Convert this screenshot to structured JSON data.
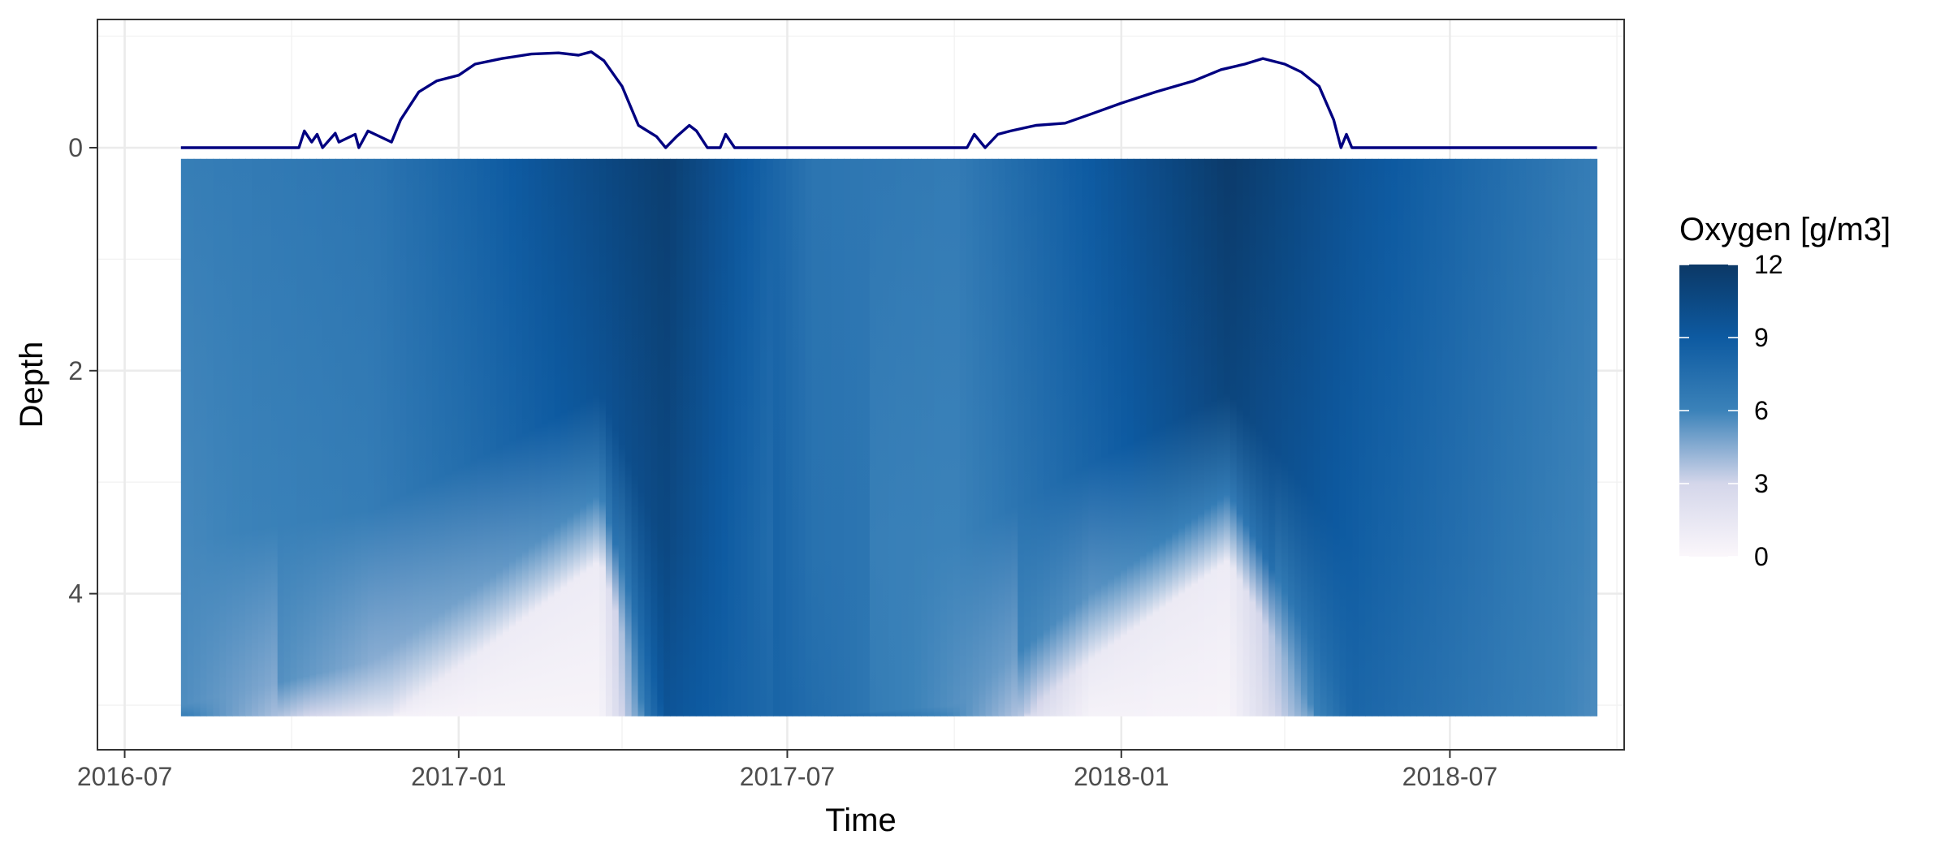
{
  "chart_data": {
    "type": "heatmap",
    "title": "",
    "xlabel": "Time",
    "ylabel": "Depth",
    "x_ticks": [
      "2016-07",
      "2017-01",
      "2017-07",
      "2018-01",
      "2018-07"
    ],
    "y_ticks": [
      "0",
      "2",
      "4"
    ],
    "xlim": [
      "2016-06-16",
      "2018-10-05"
    ],
    "ylim": [
      -1.15,
      5.4
    ],
    "y_reversed": true,
    "grid": true,
    "legend_position": "right",
    "legend": {
      "title": "Oxygen [g/m3]",
      "ticks": [
        "0",
        "3",
        "6",
        "9",
        "12"
      ],
      "range": [
        0,
        12
      ],
      "colors": [
        "#fbf7fb",
        "#d4d6ea",
        "#3b82b9",
        "#0d5aa1",
        "#0c3866"
      ]
    },
    "heatmap": {
      "time_range": [
        "2016-08-01",
        "2018-09-20"
      ],
      "depth_range": [
        0.1,
        5.1
      ],
      "description_profiles": [
        {
          "date": "2016-08-01",
          "surface": 6.3,
          "bottom": 5.5,
          "hypolimnion_top": 5.0
        },
        {
          "date": "2016-11-15",
          "surface": 7.0,
          "bottom": 0.5,
          "hypolimnion_top": 4.6
        },
        {
          "date": "2017-01-15",
          "surface": 8.5,
          "bottom": 0.3,
          "hypolimnion_top": 3.9
        },
        {
          "date": "2017-03-20",
          "surface": 10.5,
          "bottom": 0.3,
          "hypolimnion_top": 3.1
        },
        {
          "date": "2017-04-25",
          "surface": 11.5,
          "bottom": 8.5,
          "hypolimnion_top": 5.1
        },
        {
          "date": "2017-07-15",
          "surface": 7.0,
          "bottom": 8.0,
          "hypolimnion_top": 5.1
        },
        {
          "date": "2017-10-01",
          "surface": 6.5,
          "bottom": 5.0,
          "hypolimnion_top": 5.0
        },
        {
          "date": "2017-12-15",
          "surface": 9.0,
          "bottom": 0.5,
          "hypolimnion_top": 4.0
        },
        {
          "date": "2018-03-01",
          "surface": 11.8,
          "bottom": 0.3,
          "hypolimnion_top": 3.1
        },
        {
          "date": "2018-05-10",
          "surface": 9.5,
          "bottom": 7.5,
          "hypolimnion_top": 5.1
        },
        {
          "date": "2018-09-20",
          "surface": 6.3,
          "bottom": 5.5,
          "hypolimnion_top": 5.1
        }
      ]
    },
    "series": [
      {
        "type": "line",
        "color": "#000080",
        "x": [
          "2016-08-01",
          "2016-10-05",
          "2016-10-08",
          "2016-10-12",
          "2016-10-15",
          "2016-10-18",
          "2016-10-25",
          "2016-10-27",
          "2016-11-05",
          "2016-11-07",
          "2016-11-12",
          "2016-11-25",
          "2016-11-30",
          "2016-12-10",
          "2016-12-20",
          "2017-01-01",
          "2017-01-10",
          "2017-01-25",
          "2017-02-10",
          "2017-02-25",
          "2017-03-08",
          "2017-03-15",
          "2017-03-22",
          "2017-04-01",
          "2017-04-10",
          "2017-04-20",
          "2017-04-25",
          "2017-05-01",
          "2017-05-08",
          "2017-05-12",
          "2017-05-18",
          "2017-05-25",
          "2017-05-28",
          "2017-06-02",
          "2018-07-31",
          "2017-10-08",
          "2017-10-12",
          "2017-10-18",
          "2017-10-25",
          "2017-11-01",
          "2017-11-15",
          "2017-12-01",
          "2017-12-15",
          "2018-01-01",
          "2018-01-20",
          "2018-02-10",
          "2018-02-25",
          "2018-03-10",
          "2018-03-20",
          "2018-04-01",
          "2018-04-10",
          "2018-04-20",
          "2018-04-28",
          "2018-05-02",
          "2018-05-05",
          "2018-05-08",
          "2018-09-20"
        ],
        "y": [
          0,
          0,
          -0.15,
          -0.05,
          -0.12,
          0,
          -0.13,
          -0.05,
          -0.12,
          0,
          -0.15,
          -0.05,
          -0.25,
          -0.5,
          -0.6,
          -0.65,
          -0.75,
          -0.8,
          -0.84,
          -0.85,
          -0.83,
          -0.86,
          -0.78,
          -0.55,
          -0.2,
          -0.1,
          0,
          -0.1,
          -0.2,
          -0.15,
          0,
          0,
          -0.12,
          0,
          0,
          0,
          -0.12,
          0,
          -0.12,
          -0.15,
          -0.2,
          -0.22,
          -0.3,
          -0.4,
          -0.5,
          -0.6,
          -0.7,
          -0.75,
          -0.8,
          -0.75,
          -0.68,
          -0.55,
          -0.25,
          0,
          -0.12,
          0,
          0
        ]
      }
    ]
  }
}
